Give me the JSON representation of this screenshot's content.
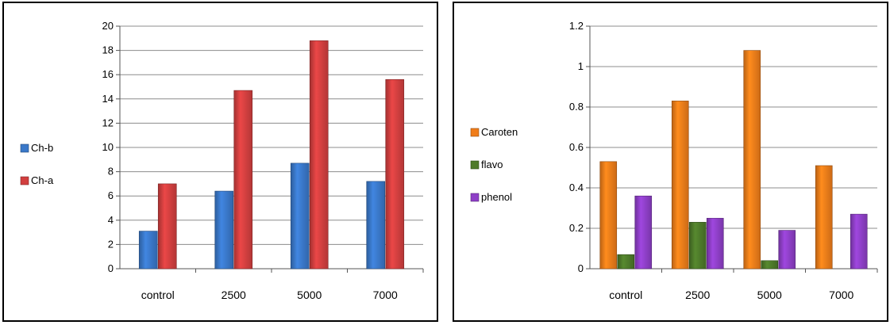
{
  "chart_data": [
    {
      "type": "bar",
      "categories": [
        "control",
        "2500",
        "5000",
        "7000"
      ],
      "series": [
        {
          "name": "Ch-b",
          "values": [
            3.1,
            6.4,
            8.7,
            7.2
          ],
          "color": "#3a78c9"
        },
        {
          "name": "Ch-a",
          "values": [
            7.0,
            14.7,
            18.8,
            15.6
          ],
          "color": "#d23f3f"
        }
      ],
      "ylim": [
        0,
        20
      ],
      "yticks": [
        "0",
        "2",
        "4",
        "6",
        "8",
        "10",
        "12",
        "14",
        "16",
        "18",
        "20"
      ],
      "grid": true,
      "legend": "left"
    },
    {
      "type": "bar",
      "categories": [
        "control",
        "2500",
        "5000",
        "7000"
      ],
      "series": [
        {
          "name": "Caroten",
          "values": [
            0.53,
            0.83,
            1.08,
            0.51
          ],
          "color": "#f07d1a"
        },
        {
          "name": "flavo",
          "values": [
            0.07,
            0.23,
            0.04,
            0.0
          ],
          "color": "#4e7a2a"
        },
        {
          "name": "phenol",
          "values": [
            0.36,
            0.25,
            0.19,
            0.27
          ],
          "color": "#8e3fc7"
        }
      ],
      "ylim": [
        0,
        1.2
      ],
      "yticks": [
        "0",
        "0.2",
        "0.4",
        "0.6",
        "0.8",
        "1",
        "1.2"
      ],
      "grid": true,
      "legend": "left"
    }
  ]
}
